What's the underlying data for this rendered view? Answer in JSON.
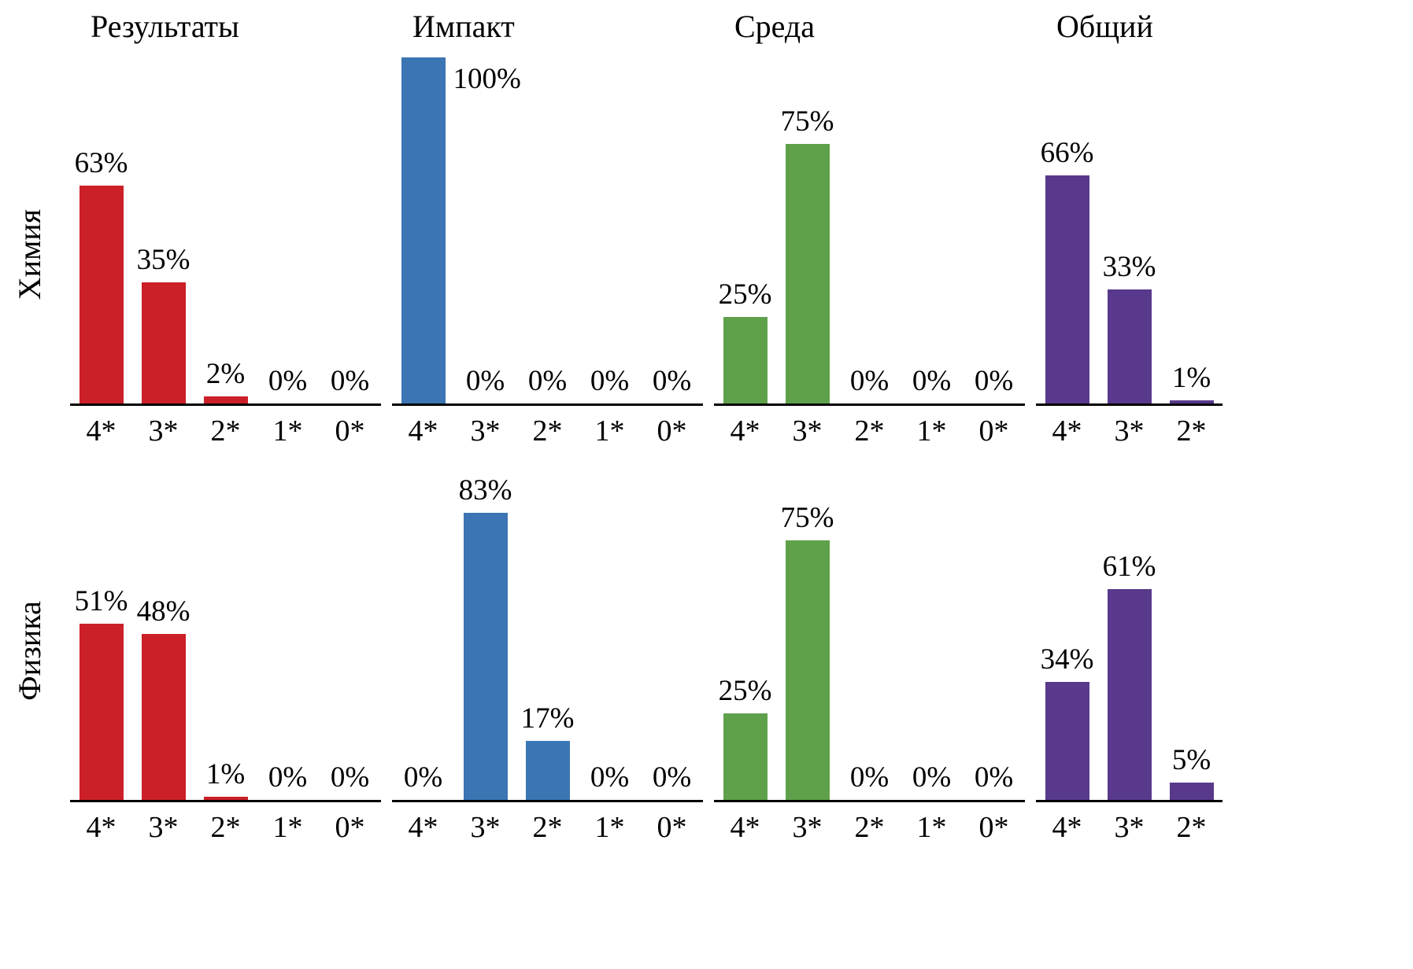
{
  "figure_name": "star-rating-distribution-charts",
  "chart_data": {
    "type": "bar",
    "unit": "%",
    "ylim": [
      0,
      100
    ],
    "grid": false,
    "legend": "none",
    "column_titles": [
      "Результаты",
      "Импакт",
      "Среда",
      "Общий"
    ],
    "column_colors": [
      "#cb2027",
      "#3b75b4",
      "#5fa14b",
      "#59398c"
    ],
    "row_labels": [
      "Химия",
      "Физика"
    ],
    "charts": [
      {
        "row": "Химия",
        "column": "Результаты",
        "categories": [
          "4*",
          "3*",
          "2*",
          "1*",
          "0*"
        ],
        "values": [
          63,
          35,
          2,
          0,
          0
        ]
      },
      {
        "row": "Химия",
        "column": "Импакт",
        "categories": [
          "4*",
          "3*",
          "2*",
          "1*",
          "0*"
        ],
        "values": [
          100,
          0,
          0,
          0,
          0
        ]
      },
      {
        "row": "Химия",
        "column": "Среда",
        "categories": [
          "4*",
          "3*",
          "2*",
          "1*",
          "0*"
        ],
        "values": [
          25,
          75,
          0,
          0,
          0
        ]
      },
      {
        "row": "Химия",
        "column": "Общий",
        "categories": [
          "4*",
          "3*",
          "2*"
        ],
        "values": [
          66,
          33,
          1
        ]
      },
      {
        "row": "Физика",
        "column": "Результаты",
        "categories": [
          "4*",
          "3*",
          "2*",
          "1*",
          "0*"
        ],
        "values": [
          51,
          48,
          1,
          0,
          0
        ]
      },
      {
        "row": "Физика",
        "column": "Импакт",
        "categories": [
          "4*",
          "3*",
          "2*",
          "1*",
          "0*"
        ],
        "values": [
          0,
          83,
          17,
          0,
          0
        ]
      },
      {
        "row": "Физика",
        "column": "Среда",
        "categories": [
          "4*",
          "3*",
          "2*",
          "1*",
          "0*"
        ],
        "values": [
          25,
          75,
          0,
          0,
          0
        ]
      },
      {
        "row": "Физика",
        "column": "Общий",
        "categories": [
          "4*",
          "3*",
          "2*"
        ],
        "values": [
          34,
          61,
          5
        ]
      }
    ]
  }
}
